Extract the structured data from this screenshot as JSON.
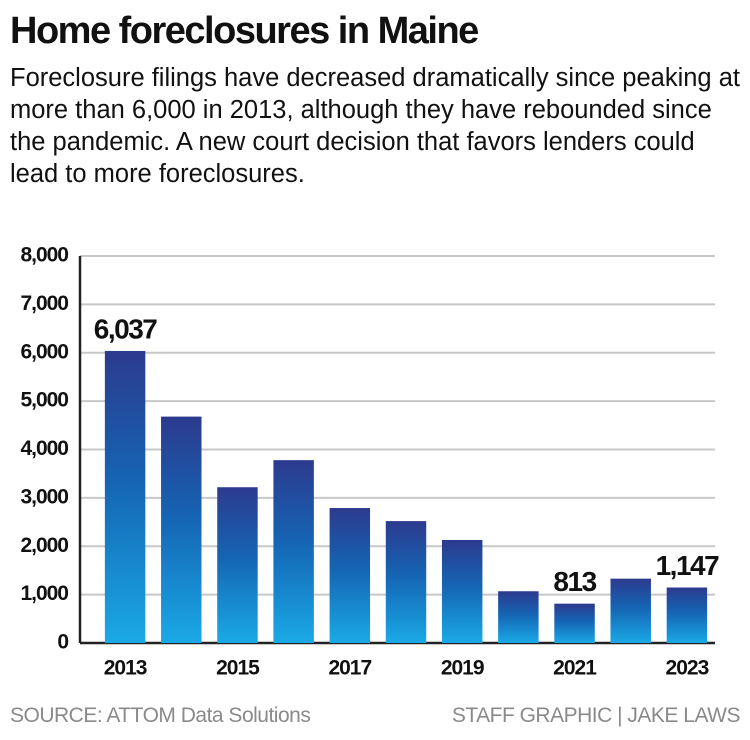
{
  "chart_data": {
    "type": "bar",
    "title": "Home foreclosures in Maine",
    "subtitle": "Foreclosure filings have decreased dramatically since peaking at more than 6,000 in 2013, although they have rebounded since the pandemic. A new court decision that favors lenders could lead to more foreclosures.",
    "categories": [
      "2013",
      null,
      "2015",
      null,
      "2017",
      null,
      "2019",
      null,
      "2021",
      null,
      "2023"
    ],
    "values": [
      6037,
      4680,
      3220,
      3780,
      2790,
      2520,
      2130,
      1070,
      813,
      1330,
      1147
    ],
    "value_labels": [
      "6,037",
      null,
      null,
      null,
      null,
      null,
      null,
      null,
      "813",
      null,
      "1,147"
    ],
    "color": "gradient-blue",
    "ylim": [
      0,
      8000
    ],
    "yticks": [
      0,
      {
        "value": 1000,
        "label": "1,000"
      },
      {
        "value": 2000,
        "label": "2,000"
      },
      {
        "value": 3000,
        "label": "3,000"
      },
      {
        "value": 4000,
        "label": "4,000"
      },
      {
        "value": 5000,
        "label": "5,000"
      },
      {
        "value": 6000,
        "label": "6,000"
      },
      {
        "value": 7000,
        "label": "7,000"
      },
      {
        "value": 8000,
        "label": "8,000"
      }
    ],
    "grid": true,
    "source": "SOURCE: ATTOM Data Solutions",
    "credit": "STAFF GRAPHIC | JAKE LAWS"
  }
}
